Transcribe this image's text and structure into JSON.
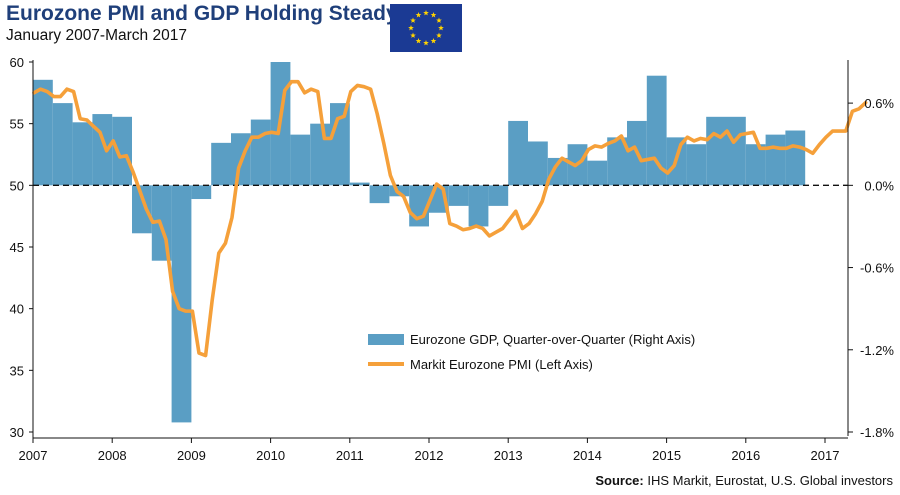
{
  "header": {
    "title": "Eurozone PMI and GDP Holding Steady",
    "subtitle": "January 2007-March 2017"
  },
  "source": {
    "label": "Source:",
    "text": "IHS Markit, Eurostat, U.S. Global investors"
  },
  "colors": {
    "bar": "#5a9ec4",
    "line": "#f5a03a",
    "flag_blue": "#1b3a94",
    "flag_star": "#ffd300",
    "title": "#1f3f7a"
  },
  "chart_data": {
    "type": "bar+line",
    "title": "Eurozone PMI and GDP Holding Steady",
    "subtitle": "January 2007-March 2017",
    "x_tick_labels": [
      "2007",
      "2008",
      "2009",
      "2010",
      "2011",
      "2012",
      "2013",
      "2014",
      "2015",
      "2016",
      "2017"
    ],
    "left_axis": {
      "ticks": [
        "60",
        "55",
        "50",
        "45",
        "40",
        "35",
        "30"
      ],
      "range": [
        30,
        60
      ]
    },
    "right_axis": {
      "ticks": [
        "0.6%",
        "0.0%",
        "-0.6%",
        "-1.2%",
        "-1.8%"
      ],
      "range": [
        -1.8,
        0.9
      ]
    },
    "legend_position": "center",
    "series": [
      {
        "name": "Eurozone GDP, Quarter-over-Quarter (Right Axis)",
        "axis": "right",
        "kind": "bar",
        "period": "quarterly",
        "start": "2007-Q1",
        "values": [
          0.77,
          0.6,
          0.46,
          0.52,
          0.5,
          -0.35,
          -0.55,
          -1.73,
          -0.1,
          0.31,
          0.38,
          0.48,
          0.9,
          0.37,
          0.45,
          0.6,
          0.02,
          -0.13,
          -0.08,
          -0.3,
          -0.2,
          -0.15,
          -0.3,
          -0.15,
          0.47,
          0.32,
          0.2,
          0.3,
          0.18,
          0.35,
          0.47,
          0.8,
          0.35,
          0.3,
          0.5,
          0.5,
          0.3,
          0.37,
          0.4
        ]
      },
      {
        "name": "Markit Eurozone PMI (Left Axis)",
        "axis": "left",
        "kind": "line",
        "period": "monthly",
        "start": "2007-01",
        "values": [
          57.5,
          57.8,
          57.6,
          57.2,
          57.2,
          57.8,
          57.6,
          55.4,
          55.3,
          54.8,
          54.3,
          52.8,
          53.6,
          52.3,
          52.4,
          51.1,
          49.6,
          48.1,
          47.0,
          47.1,
          45.6,
          41.4,
          40.0,
          39.8,
          39.8,
          36.4,
          36.2,
          40.7,
          44.5,
          45.3,
          47.4,
          51.4,
          52.8,
          53.9,
          53.9,
          54.2,
          54.3,
          54.2,
          57.7,
          58.4,
          58.4,
          57.5,
          57.8,
          57.6,
          53.8,
          53.8,
          55.4,
          55.6,
          57.6,
          58.1,
          58.0,
          57.8,
          55.8,
          53.4,
          50.8,
          49.5,
          49.1,
          47.8,
          47.3,
          47.5,
          48.8,
          50.1,
          49.7,
          46.9,
          46.7,
          46.4,
          46.5,
          46.7,
          46.5,
          45.9,
          46.2,
          46.5,
          47.2,
          47.9,
          46.5,
          46.9,
          47.7,
          48.7,
          50.5,
          51.5,
          52.2,
          51.9,
          51.6,
          52.0,
          52.9,
          53.2,
          53.1,
          53.4,
          53.6,
          54.0,
          52.8,
          53.1,
          52.0,
          52.1,
          52.2,
          51.4,
          51.0,
          51.6,
          53.3,
          53.9,
          53.6,
          53.8,
          53.7,
          54.2,
          53.9,
          54.4,
          53.5,
          54.1,
          54.2,
          54.3,
          53.0,
          53.0,
          53.1,
          53.0,
          53.0,
          53.2,
          53.1,
          52.9,
          52.6,
          53.3,
          53.9,
          54.4,
          54.4,
          54.4,
          56.0,
          56.2,
          56.7
        ]
      }
    ],
    "reference_line": {
      "axis": "right",
      "value": 0.0,
      "style": "dashed"
    }
  }
}
